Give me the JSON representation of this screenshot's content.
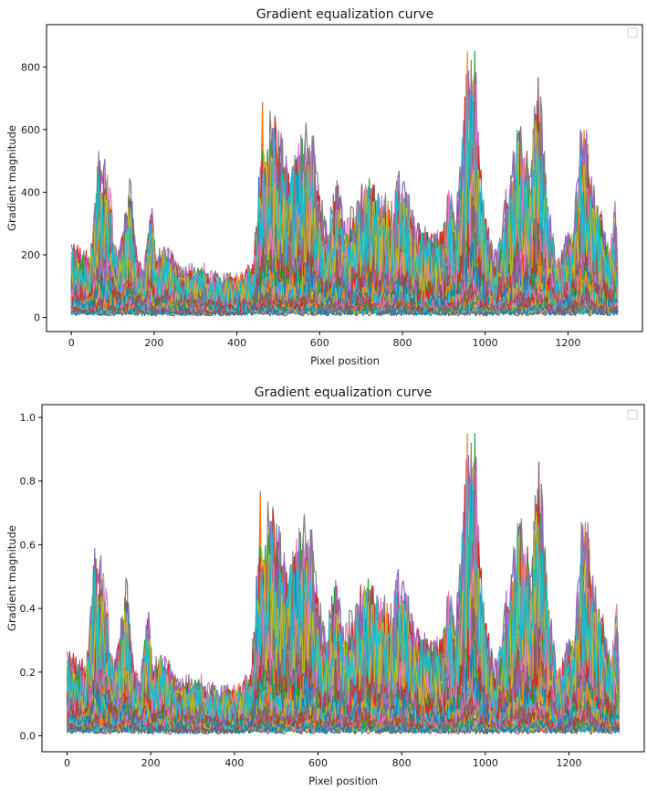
{
  "chart_data": [
    {
      "type": "line",
      "title": "Gradient equalization curve",
      "xlabel": "Pixel position",
      "ylabel": "Gradient magnitude",
      "xlim": [
        -60,
        1380
      ],
      "ylim": [
        -45,
        935
      ],
      "x_ticks": [
        0,
        200,
        400,
        600,
        800,
        1000,
        1200
      ],
      "y_ticks": [
        0,
        200,
        400,
        600,
        800
      ],
      "y_tick_labels": [
        "0",
        "200",
        "400",
        "600",
        "800"
      ],
      "legend": "top-right, empty",
      "grid": false,
      "x_range": [
        0,
        1320
      ],
      "series_count_approx": 60,
      "envelope_peaks": [
        {
          "x": 0,
          "y": 220
        },
        {
          "x": 22,
          "y": 210
        },
        {
          "x": 45,
          "y": 185
        },
        {
          "x": 58,
          "y": 360
        },
        {
          "x": 65,
          "y": 540
        },
        {
          "x": 75,
          "y": 460
        },
        {
          "x": 82,
          "y": 505
        },
        {
          "x": 90,
          "y": 470
        },
        {
          "x": 110,
          "y": 170
        },
        {
          "x": 128,
          "y": 300
        },
        {
          "x": 140,
          "y": 465
        },
        {
          "x": 160,
          "y": 150
        },
        {
          "x": 175,
          "y": 125
        },
        {
          "x": 195,
          "y": 385
        },
        {
          "x": 205,
          "y": 150
        },
        {
          "x": 222,
          "y": 240
        },
        {
          "x": 260,
          "y": 135
        },
        {
          "x": 300,
          "y": 130
        },
        {
          "x": 320,
          "y": 140
        },
        {
          "x": 360,
          "y": 115
        },
        {
          "x": 400,
          "y": 105
        },
        {
          "x": 440,
          "y": 150
        },
        {
          "x": 462,
          "y": 680
        },
        {
          "x": 470,
          "y": 610
        },
        {
          "x": 490,
          "y": 690
        },
        {
          "x": 510,
          "y": 560
        },
        {
          "x": 530,
          "y": 480
        },
        {
          "x": 550,
          "y": 600
        },
        {
          "x": 570,
          "y": 615
        },
        {
          "x": 585,
          "y": 560
        },
        {
          "x": 600,
          "y": 400
        },
        {
          "x": 620,
          "y": 250
        },
        {
          "x": 640,
          "y": 480
        },
        {
          "x": 660,
          "y": 300
        },
        {
          "x": 690,
          "y": 350
        },
        {
          "x": 710,
          "y": 490
        },
        {
          "x": 740,
          "y": 400
        },
        {
          "x": 770,
          "y": 370
        },
        {
          "x": 790,
          "y": 460
        },
        {
          "x": 810,
          "y": 410
        },
        {
          "x": 830,
          "y": 300
        },
        {
          "x": 870,
          "y": 260
        },
        {
          "x": 900,
          "y": 280
        },
        {
          "x": 910,
          "y": 420
        },
        {
          "x": 930,
          "y": 320
        },
        {
          "x": 955,
          "y": 850
        },
        {
          "x": 965,
          "y": 880
        },
        {
          "x": 975,
          "y": 895
        },
        {
          "x": 985,
          "y": 600
        },
        {
          "x": 1000,
          "y": 320
        },
        {
          "x": 1025,
          "y": 180
        },
        {
          "x": 1045,
          "y": 360
        },
        {
          "x": 1065,
          "y": 470
        },
        {
          "x": 1075,
          "y": 610
        },
        {
          "x": 1095,
          "y": 580
        },
        {
          "x": 1110,
          "y": 490
        },
        {
          "x": 1125,
          "y": 820
        },
        {
          "x": 1140,
          "y": 630
        },
        {
          "x": 1150,
          "y": 400
        },
        {
          "x": 1165,
          "y": 240
        },
        {
          "x": 1180,
          "y": 150
        },
        {
          "x": 1195,
          "y": 250
        },
        {
          "x": 1215,
          "y": 300
        },
        {
          "x": 1232,
          "y": 620
        },
        {
          "x": 1248,
          "y": 580
        },
        {
          "x": 1262,
          "y": 400
        },
        {
          "x": 1280,
          "y": 320
        },
        {
          "x": 1300,
          "y": 200
        },
        {
          "x": 1315,
          "y": 390
        },
        {
          "x": 1320,
          "y": 180
        }
      ]
    },
    {
      "type": "line",
      "title": "Gradient equalization curve",
      "xlabel": "Pixel position",
      "ylabel": "Gradient magnitude",
      "xlim": [
        -60,
        1380
      ],
      "ylim": [
        -0.05,
        1.04
      ],
      "x_ticks": [
        0,
        200,
        400,
        600,
        800,
        1000,
        1200
      ],
      "y_ticks": [
        0.0,
        0.2,
        0.4,
        0.6,
        0.8,
        1.0
      ],
      "y_tick_labels": [
        "0.0",
        "0.2",
        "0.4",
        "0.6",
        "0.8",
        "1.0"
      ],
      "legend": "top-right, empty",
      "grid": false,
      "x_range": [
        0,
        1320
      ],
      "series_count_approx": 60,
      "envelope_peaks": [
        {
          "x": 0,
          "y": 0.25
        },
        {
          "x": 22,
          "y": 0.235
        },
        {
          "x": 45,
          "y": 0.21
        },
        {
          "x": 58,
          "y": 0.4
        },
        {
          "x": 65,
          "y": 0.6
        },
        {
          "x": 75,
          "y": 0.515
        },
        {
          "x": 82,
          "y": 0.565
        },
        {
          "x": 90,
          "y": 0.525
        },
        {
          "x": 110,
          "y": 0.19
        },
        {
          "x": 128,
          "y": 0.335
        },
        {
          "x": 140,
          "y": 0.52
        },
        {
          "x": 160,
          "y": 0.17
        },
        {
          "x": 175,
          "y": 0.14
        },
        {
          "x": 195,
          "y": 0.43
        },
        {
          "x": 205,
          "y": 0.17
        },
        {
          "x": 222,
          "y": 0.27
        },
        {
          "x": 260,
          "y": 0.15
        },
        {
          "x": 300,
          "y": 0.145
        },
        {
          "x": 320,
          "y": 0.155
        },
        {
          "x": 360,
          "y": 0.13
        },
        {
          "x": 400,
          "y": 0.12
        },
        {
          "x": 440,
          "y": 0.17
        },
        {
          "x": 462,
          "y": 0.76
        },
        {
          "x": 470,
          "y": 0.68
        },
        {
          "x": 490,
          "y": 0.77
        },
        {
          "x": 510,
          "y": 0.625
        },
        {
          "x": 530,
          "y": 0.535
        },
        {
          "x": 550,
          "y": 0.67
        },
        {
          "x": 570,
          "y": 0.69
        },
        {
          "x": 585,
          "y": 0.625
        },
        {
          "x": 600,
          "y": 0.445
        },
        {
          "x": 620,
          "y": 0.28
        },
        {
          "x": 640,
          "y": 0.535
        },
        {
          "x": 660,
          "y": 0.335
        },
        {
          "x": 690,
          "y": 0.39
        },
        {
          "x": 710,
          "y": 0.545
        },
        {
          "x": 740,
          "y": 0.445
        },
        {
          "x": 770,
          "y": 0.415
        },
        {
          "x": 790,
          "y": 0.515
        },
        {
          "x": 810,
          "y": 0.46
        },
        {
          "x": 830,
          "y": 0.335
        },
        {
          "x": 870,
          "y": 0.29
        },
        {
          "x": 900,
          "y": 0.31
        },
        {
          "x": 910,
          "y": 0.47
        },
        {
          "x": 930,
          "y": 0.36
        },
        {
          "x": 955,
          "y": 0.95
        },
        {
          "x": 965,
          "y": 0.985
        },
        {
          "x": 975,
          "y": 1.0
        },
        {
          "x": 985,
          "y": 0.67
        },
        {
          "x": 1000,
          "y": 0.36
        },
        {
          "x": 1025,
          "y": 0.2
        },
        {
          "x": 1045,
          "y": 0.4
        },
        {
          "x": 1065,
          "y": 0.525
        },
        {
          "x": 1075,
          "y": 0.68
        },
        {
          "x": 1095,
          "y": 0.65
        },
        {
          "x": 1110,
          "y": 0.545
        },
        {
          "x": 1125,
          "y": 0.92
        },
        {
          "x": 1140,
          "y": 0.705
        },
        {
          "x": 1150,
          "y": 0.445
        },
        {
          "x": 1165,
          "y": 0.27
        },
        {
          "x": 1180,
          "y": 0.17
        },
        {
          "x": 1195,
          "y": 0.28
        },
        {
          "x": 1215,
          "y": 0.335
        },
        {
          "x": 1232,
          "y": 0.695
        },
        {
          "x": 1248,
          "y": 0.65
        },
        {
          "x": 1262,
          "y": 0.445
        },
        {
          "x": 1280,
          "y": 0.36
        },
        {
          "x": 1300,
          "y": 0.225
        },
        {
          "x": 1315,
          "y": 0.435
        },
        {
          "x": 1320,
          "y": 0.2
        }
      ]
    }
  ],
  "colors": {
    "series_cycle": [
      "#1f77b4",
      "#ff7f0e",
      "#2ca02c",
      "#d62728",
      "#9467bd",
      "#8c564b",
      "#e377c2",
      "#7f7f7f",
      "#bcbd22",
      "#17becf"
    ],
    "axes": "#000000",
    "background": "#ffffff"
  }
}
